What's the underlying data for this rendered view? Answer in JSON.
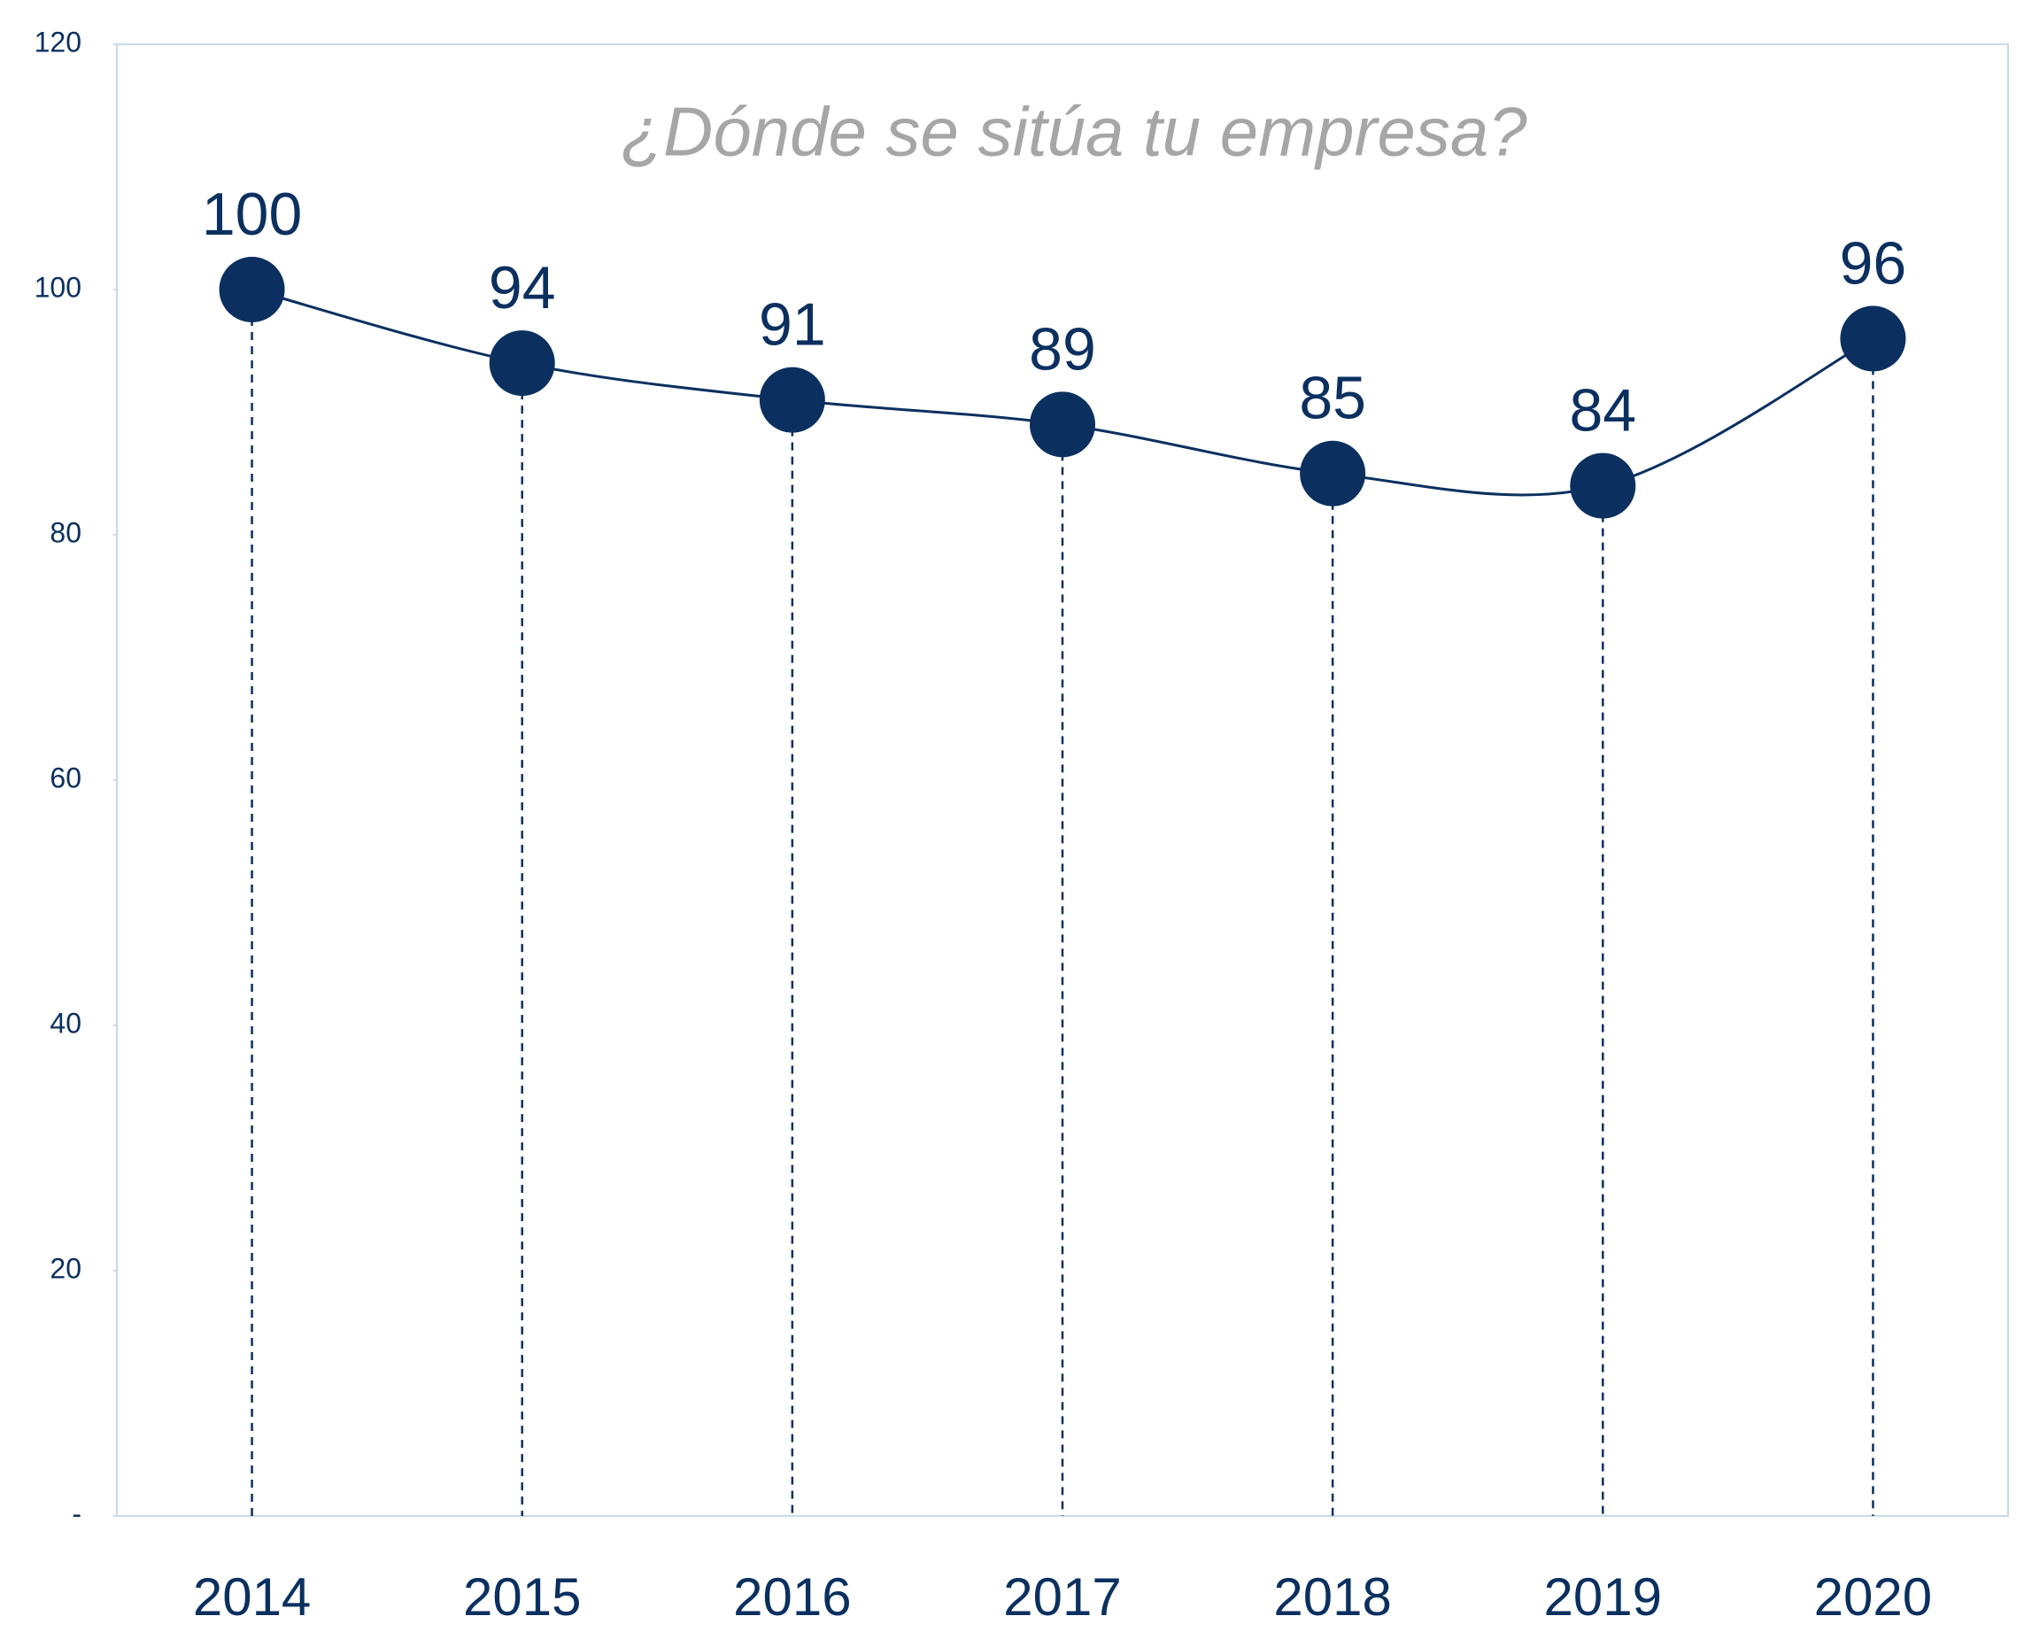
{
  "chart_data": {
    "type": "line",
    "title": "¿Dónde se sitúa tu empresa?",
    "categories": [
      "2014",
      "2015",
      "2016",
      "2017",
      "2018",
      "2019",
      "2020"
    ],
    "values": [
      100,
      94,
      91,
      89,
      85,
      84,
      96
    ],
    "color": "#0b3060",
    "ylim": [
      0,
      120
    ],
    "yticks": [
      {
        "value": 0,
        "label": "-"
      },
      20,
      40,
      60,
      80,
      100,
      120
    ],
    "grid": false
  }
}
